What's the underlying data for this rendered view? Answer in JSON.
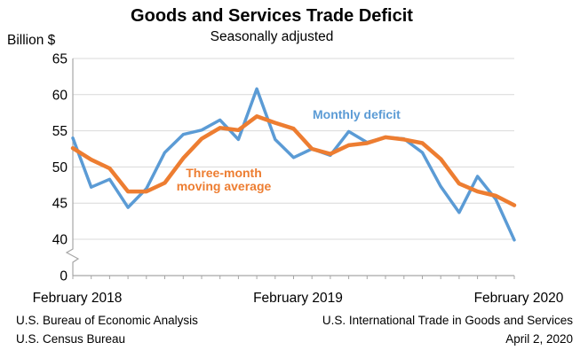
{
  "header": {
    "title": "Goods and Services Trade Deficit",
    "subtitle": "Seasonally adjusted",
    "y_axis_unit": "Billion $"
  },
  "chart_data": {
    "type": "line",
    "title": "Goods and Services Trade Deficit",
    "subtitle": "Seasonally adjusted",
    "ylabel": "Billion $",
    "grid": "horizontal",
    "ylim_shown": [
      40,
      65
    ],
    "yticks": [
      65,
      60,
      55,
      50,
      45,
      40
    ],
    "y_base_label": "0",
    "y_axis_break": true,
    "x": [
      "Feb 2018",
      "Mar 2018",
      "Apr 2018",
      "May 2018",
      "Jun 2018",
      "Jul 2018",
      "Aug 2018",
      "Sep 2018",
      "Oct 2018",
      "Nov 2018",
      "Dec 2018",
      "Jan 2019",
      "Feb 2019",
      "Mar 2019",
      "Apr 2019",
      "May 2019",
      "Jun 2019",
      "Jul 2019",
      "Aug 2019",
      "Sep 2019",
      "Oct 2019",
      "Nov 2019",
      "Dec 2019",
      "Jan 2020",
      "Feb 2020"
    ],
    "x_ticks": [
      {
        "index": 0,
        "label": "February 2018"
      },
      {
        "index": 12,
        "label": "February 2019"
      },
      {
        "index": 24,
        "label": "February 2020"
      }
    ],
    "series": [
      {
        "name": "Monthly deficit",
        "color": "#5B9BD5",
        "values": [
          54.0,
          47.2,
          48.3,
          44.4,
          47.0,
          52.0,
          54.5,
          55.1,
          56.5,
          53.8,
          60.8,
          53.8,
          51.3,
          52.5,
          51.6,
          54.9,
          53.4,
          54.1,
          53.9,
          52.0,
          47.3,
          43.7,
          48.7,
          45.5,
          39.9
        ]
      },
      {
        "name": "Three-month moving average",
        "color": "#ED7D31",
        "values": [
          52.6,
          51.0,
          49.8,
          46.6,
          46.6,
          47.8,
          51.2,
          53.9,
          55.4,
          55.1,
          57.0,
          56.1,
          55.3,
          52.5,
          51.8,
          53.0,
          53.3,
          54.1,
          53.8,
          53.3,
          51.1,
          47.7,
          46.6,
          46.0,
          44.7
        ]
      }
    ],
    "annotations": [
      {
        "text": "Monthly deficit",
        "color": "#5B9BD5"
      },
      {
        "text": "Three-month moving average",
        "color": "#ED7D31"
      }
    ]
  },
  "colors": {
    "monthly_deficit": "#5B9BD5",
    "moving_average": "#ED7D31",
    "gridline": "#D9D9D9",
    "axis": "#A6A6A6",
    "text": "#000000"
  },
  "footer": {
    "left_line1": "U.S. Bureau of Economic Analysis",
    "left_line2": "U.S. Census Bureau",
    "right_line1": "U.S. International Trade in Goods and Services",
    "right_line2": "April 2, 2020"
  }
}
